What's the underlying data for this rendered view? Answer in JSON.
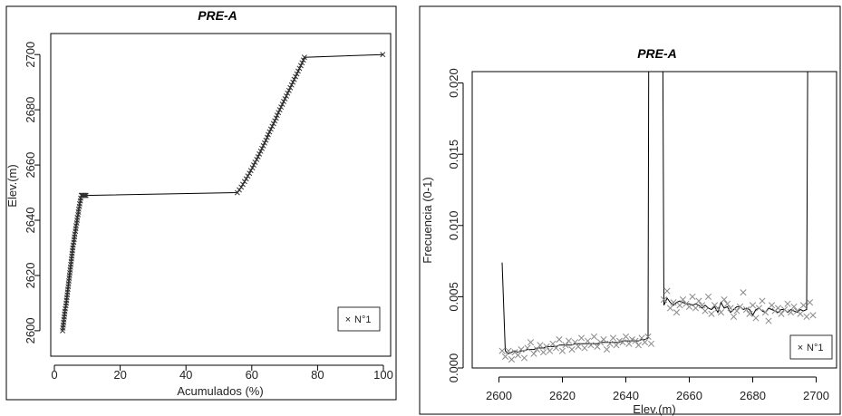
{
  "chart_data": [
    {
      "type": "line",
      "title": "PRE-A",
      "xlabel": "Acumulados (%)",
      "ylabel": "Elev.(m)",
      "xlim": [
        0,
        100
      ],
      "ylim": [
        2598,
        2704
      ],
      "xticks": [
        "0",
        "20",
        "40",
        "60",
        "80",
        "100"
      ],
      "yticks": [
        "2600",
        "2620",
        "2640",
        "2660",
        "2680",
        "2700"
      ],
      "grid": false,
      "legend": {
        "entries": [
          "N°1"
        ],
        "position": "bottom-right",
        "marker": "×"
      },
      "series": [
        {
          "name": "N°1",
          "marker": "x",
          "x": [
            2.5,
            2.6,
            2.7,
            2.8,
            2.9,
            3.0,
            3.1,
            3.2,
            3.3,
            3.5,
            3.6,
            3.7,
            3.8,
            3.9,
            4.0,
            4.1,
            4.2,
            4.3,
            4.4,
            4.5,
            4.6,
            4.7,
            4.8,
            4.9,
            5.0,
            5.1,
            5.2,
            5.3,
            5.4,
            5.5,
            5.6,
            5.7,
            5.9,
            6.0,
            6.1,
            6.2,
            6.4,
            6.5,
            6.6,
            6.8,
            6.9,
            7.0,
            7.2,
            7.3,
            7.4,
            7.6,
            7.7,
            7.9,
            8.0,
            8.2,
            8.3,
            8.5,
            8.6,
            8.8,
            9.0,
            9.2,
            9.4,
            9.6,
            55.6,
            56.2,
            56.8,
            57.3,
            57.8,
            58.3,
            58.8,
            59.3,
            59.7,
            60.2,
            60.6,
            61.0,
            61.5,
            61.9,
            62.3,
            62.7,
            63.1,
            63.5,
            63.9,
            64.3,
            64.7,
            65.0,
            65.4,
            65.8,
            66.2,
            66.6,
            67.0,
            67.4,
            67.7,
            68.1,
            68.5,
            68.9,
            69.3,
            69.7,
            70.1,
            70.5,
            70.9,
            71.3,
            71.7,
            72.1,
            72.5,
            72.9,
            73.3,
            73.7,
            74.1,
            74.5,
            74.9,
            75.3,
            75.7,
            76.0,
            99.8
          ],
          "y": [
            2600,
            2601,
            2602,
            2603,
            2604,
            2605,
            2606,
            2607,
            2608,
            2609,
            2610,
            2611,
            2612,
            2613,
            2614,
            2615,
            2616,
            2617,
            2618,
            2619,
            2620,
            2621,
            2622,
            2623,
            2624,
            2625,
            2626,
            2627,
            2628,
            2629,
            2630,
            2631,
            2632,
            2633,
            2634,
            2635,
            2636,
            2637,
            2638,
            2639,
            2640,
            2641,
            2642,
            2643,
            2644,
            2645,
            2646,
            2647,
            2648,
            2649,
            2649,
            2649,
            2649,
            2649,
            2649,
            2649,
            2649,
            2649,
            2650,
            2651,
            2652,
            2653,
            2654,
            2655,
            2656,
            2657,
            2658,
            2659,
            2660,
            2661,
            2662,
            2663,
            2664,
            2665,
            2666,
            2667,
            2668,
            2669,
            2670,
            2671,
            2672,
            2673,
            2674,
            2675,
            2676,
            2677,
            2678,
            2679,
            2680,
            2681,
            2682,
            2683,
            2684,
            2685,
            2686,
            2687,
            2688,
            2689,
            2690,
            2691,
            2692,
            2693,
            2694,
            2695,
            2696,
            2697,
            2698,
            2699,
            2700
          ]
        }
      ]
    },
    {
      "type": "line",
      "title": "PRE-A",
      "xlabel": "Elev.(m)",
      "ylabel": "Frecuencia (0-1)",
      "xlim": [
        2597,
        2701
      ],
      "ylim": [
        0,
        0.0208
      ],
      "xticks": [
        "2600",
        "2620",
        "2640",
        "2660",
        "2680",
        "2700"
      ],
      "yticks": [
        "0.000",
        "0.005",
        "0.010",
        "0.015",
        "0.020"
      ],
      "grid": false,
      "legend": {
        "entries": [
          "N°1"
        ],
        "position": "bottom-right",
        "marker": "×"
      },
      "series": [
        {
          "name": "N°1",
          "marker": "x",
          "x": [
            2601,
            2602,
            2603,
            2604,
            2605,
            2606,
            2607,
            2608,
            2609,
            2610,
            2611,
            2612,
            2613,
            2614,
            2615,
            2616,
            2617,
            2618,
            2619,
            2620,
            2621,
            2622,
            2623,
            2624,
            2625,
            2626,
            2627,
            2628,
            2629,
            2630,
            2631,
            2632,
            2633,
            2634,
            2635,
            2636,
            2637,
            2638,
            2639,
            2640,
            2641,
            2642,
            2643,
            2644,
            2645,
            2646,
            2647,
            2648,
            2652,
            2653,
            2654,
            2655,
            2656,
            2657,
            2658,
            2659,
            2660,
            2661,
            2662,
            2663,
            2664,
            2665,
            2666,
            2667,
            2668,
            2669,
            2670,
            2671,
            2672,
            2673,
            2674,
            2675,
            2676,
            2677,
            2678,
            2679,
            2680,
            2681,
            2682,
            2683,
            2684,
            2685,
            2686,
            2687,
            2688,
            2689,
            2690,
            2691,
            2692,
            2693,
            2694,
            2695,
            2696,
            2697,
            2698,
            2699
          ],
          "y": [
            0.0012,
            0.0008,
            0.0012,
            0.0006,
            0.0011,
            0.0009,
            0.0013,
            0.0007,
            0.0014,
            0.0018,
            0.001,
            0.0013,
            0.0016,
            0.0011,
            0.0015,
            0.0012,
            0.0017,
            0.0014,
            0.002,
            0.0012,
            0.0016,
            0.0019,
            0.0013,
            0.0018,
            0.0015,
            0.0021,
            0.0014,
            0.0019,
            0.0016,
            0.0022,
            0.0015,
            0.0018,
            0.002,
            0.0013,
            0.0017,
            0.0021,
            0.0016,
            0.0019,
            0.0018,
            0.0022,
            0.0017,
            0.002,
            0.0019,
            0.0016,
            0.0021,
            0.0018,
            0.0022,
            0.0017,
            0.0048,
            0.0054,
            0.0042,
            0.0046,
            0.0039,
            0.0044,
            0.0048,
            0.0045,
            0.0043,
            0.005,
            0.0042,
            0.0047,
            0.0044,
            0.004,
            0.005,
            0.0038,
            0.0044,
            0.0042,
            0.0039,
            0.0048,
            0.0045,
            0.0042,
            0.0036,
            0.004,
            0.0043,
            0.0053,
            0.0041,
            0.0038,
            0.0044,
            0.0035,
            0.0042,
            0.0047,
            0.0039,
            0.0033,
            0.0044,
            0.004,
            0.0042,
            0.0038,
            0.0041,
            0.0045,
            0.0039,
            0.0043,
            0.004,
            0.0038,
            0.0044,
            0.0036,
            0.0046,
            0.0037
          ],
          "line_x": [
            2601,
            2602,
            2603,
            2604,
            2605,
            2606,
            2607,
            2608,
            2609,
            2610,
            2611,
            2612,
            2613,
            2614,
            2615,
            2616,
            2617,
            2618,
            2619,
            2620,
            2621,
            2622,
            2623,
            2624,
            2625,
            2626,
            2627,
            2628,
            2629,
            2630,
            2631,
            2632,
            2633,
            2634,
            2635,
            2636,
            2637,
            2638,
            2639,
            2640,
            2641,
            2642,
            2643,
            2644,
            2645,
            2646,
            2647,
            2647.2,
            2651.7,
            2652,
            2653,
            2654,
            2655,
            2656,
            2657,
            2658,
            2659,
            2660,
            2661,
            2662,
            2663,
            2664,
            2665,
            2666,
            2667,
            2668,
            2669,
            2670,
            2671,
            2672,
            2673,
            2674,
            2675,
            2676,
            2677,
            2678,
            2679,
            2680,
            2681,
            2682,
            2683,
            2684,
            2685,
            2686,
            2687,
            2688,
            2689,
            2690,
            2691,
            2692,
            2693,
            2694,
            2695,
            2696,
            2697,
            2697.3
          ],
          "line_y": [
            0.0074,
            0.0012,
            0.001,
            0.0011,
            0.0012,
            0.0011,
            0.0012,
            0.0012,
            0.0013,
            0.0013,
            0.0013,
            0.0014,
            0.0014,
            0.0014,
            0.0015,
            0.0015,
            0.0015,
            0.0015,
            0.0016,
            0.0016,
            0.0016,
            0.0016,
            0.0016,
            0.0017,
            0.0017,
            0.0017,
            0.0017,
            0.0017,
            0.0017,
            0.0017,
            0.0017,
            0.0018,
            0.0018,
            0.0018,
            0.0018,
            0.0018,
            0.0018,
            0.0018,
            0.0019,
            0.0019,
            0.0019,
            0.0019,
            0.0019,
            0.0019,
            0.002,
            0.002,
            0.0021,
            0.0208,
            0.0208,
            0.0044,
            0.0049,
            0.0046,
            0.0044,
            0.0046,
            0.0047,
            0.0046,
            0.0045,
            0.0045,
            0.0044,
            0.0045,
            0.0044,
            0.0042,
            0.0044,
            0.0042,
            0.0041,
            0.0043,
            0.0039,
            0.0046,
            0.0042,
            0.0043,
            0.0039,
            0.0041,
            0.0043,
            0.0043,
            0.0041,
            0.0042,
            0.0041,
            0.0037,
            0.0041,
            0.0042,
            0.004,
            0.0039,
            0.0042,
            0.0041,
            0.004,
            0.0039,
            0.0041,
            0.0041,
            0.0039,
            0.0041,
            0.004,
            0.0039,
            0.0041,
            0.004,
            0.0041,
            0.0208
          ]
        }
      ]
    }
  ]
}
